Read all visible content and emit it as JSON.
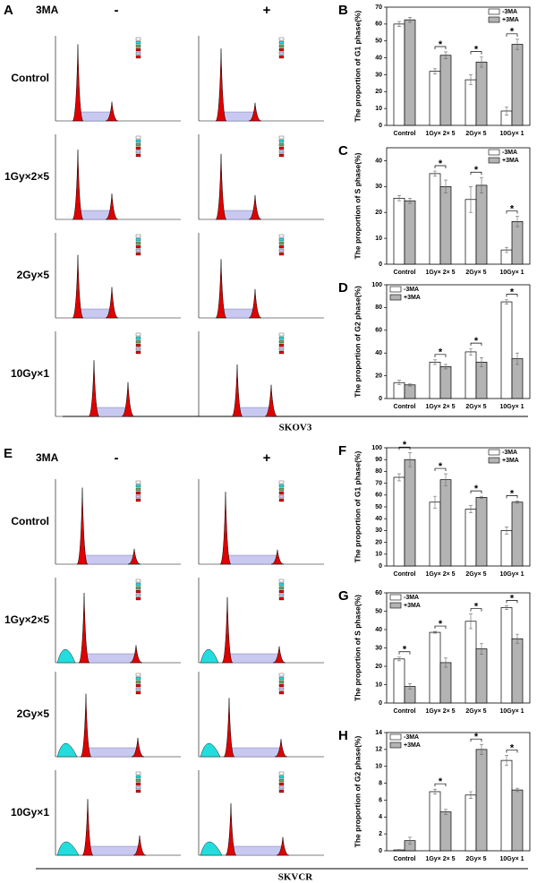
{
  "figure": {
    "panel_a": "A",
    "panel_e": "E",
    "treatment": "3MA",
    "minus": "-",
    "plus": "+",
    "rows": [
      "Control",
      "1Gy×2×5",
      "2Gy×5",
      "10Gy×1"
    ],
    "cell_top": "SKOV3",
    "cell_bottom": "SKVCR"
  },
  "chart_data": [
    {
      "type": "bar",
      "letter": "B",
      "ylabel": "The proportion of G1 phase(%)",
      "categories": [
        "Control",
        "1Gy× 2× 5",
        "2Gy× 5",
        "10Gy× 1"
      ],
      "series": [
        {
          "name": "-3MA",
          "color": "#ffffff",
          "values": [
            60,
            32,
            27,
            8.5
          ],
          "errors": [
            1.5,
            1.5,
            3,
            2.5
          ]
        },
        {
          "name": "+3MA",
          "color": "#b3b3b3",
          "values": [
            62.5,
            41.5,
            37.5,
            48
          ],
          "errors": [
            1.5,
            2,
            3,
            3
          ]
        }
      ],
      "ylim": [
        0,
        70
      ],
      "yticks": [
        0,
        10,
        20,
        30,
        40,
        50,
        60,
        70
      ],
      "legend": "upper right",
      "marker": "*",
      "significant": [
        false,
        true,
        true,
        true
      ]
    },
    {
      "type": "bar",
      "letter": "C",
      "ylabel": "The proportion of S phase(%)",
      "categories": [
        "Control",
        "1Gy× 2× 5",
        "2Gy× 5",
        "10Gy× 1"
      ],
      "series": [
        {
          "name": "-3MA",
          "color": "#ffffff",
          "values": [
            25.5,
            35,
            25,
            5.5
          ],
          "errors": [
            1,
            1,
            5,
            1
          ]
        },
        {
          "name": "+3MA",
          "color": "#b3b3b3",
          "values": [
            24.5,
            30,
            30.5,
            16.5
          ],
          "errors": [
            1,
            2.5,
            3,
            2
          ]
        }
      ],
      "ylim": [
        0,
        45
      ],
      "yticks": [
        0,
        10,
        20,
        30,
        40
      ],
      "legend": "upper right",
      "marker": "*",
      "significant": [
        false,
        true,
        true,
        true
      ]
    },
    {
      "type": "bar",
      "letter": "D",
      "ylabel": "The proportion of G2 phase(%)",
      "categories": [
        "Control",
        "1Gy× 2× 5",
        "2Gy× 5",
        "10Gy× 1"
      ],
      "series": [
        {
          "name": "-3MA",
          "color": "#ffffff",
          "values": [
            14,
            32,
            41,
            85
          ],
          "errors": [
            2,
            2,
            3,
            2
          ]
        },
        {
          "name": "+3MA",
          "color": "#b3b3b3",
          "values": [
            12,
            28,
            32,
            35
          ],
          "errors": [
            1,
            2,
            4,
            5
          ]
        }
      ],
      "ylim": [
        0,
        100
      ],
      "yticks": [
        0,
        20,
        40,
        60,
        80,
        100
      ],
      "legend": "upper left",
      "marker": "*",
      "significant": [
        false,
        true,
        true,
        true
      ]
    },
    {
      "type": "bar",
      "letter": "F",
      "ylabel": "The proportion of G1 phase(%)",
      "categories": [
        "Control",
        "1Gy× 2× 5",
        "2Gy× 5",
        "10Gy× 1"
      ],
      "series": [
        {
          "name": "-3MA",
          "color": "#ffffff",
          "values": [
            75,
            54,
            48,
            30
          ],
          "errors": [
            3,
            5,
            3,
            3
          ]
        },
        {
          "name": "+3MA",
          "color": "#b3b3b3",
          "values": [
            90,
            73,
            58,
            54
          ],
          "errors": [
            6,
            5,
            1,
            1
          ]
        }
      ],
      "ylim": [
        0,
        100
      ],
      "yticks": [
        0,
        10,
        20,
        30,
        40,
        50,
        60,
        70,
        80,
        90,
        100
      ],
      "legend": "upper right",
      "marker": "*",
      "significant": [
        true,
        true,
        true,
        true
      ]
    },
    {
      "type": "bar",
      "letter": "G",
      "ylabel": "The proportion of S phase(%)",
      "categories": [
        "Control",
        "1Gy× 2× 5",
        "2Gy× 5",
        "10Gy× 1"
      ],
      "series": [
        {
          "name": "-3MA",
          "color": "#ffffff",
          "values": [
            24,
            38.5,
            44.5,
            52
          ],
          "errors": [
            1,
            0.5,
            4,
            1
          ]
        },
        {
          "name": "+3MA",
          "color": "#b3b3b3",
          "values": [
            9,
            22,
            29.5,
            35
          ],
          "errors": [
            1.5,
            2.5,
            3,
            2.5
          ]
        }
      ],
      "ylim": [
        0,
        60
      ],
      "yticks": [
        0,
        10,
        20,
        30,
        40,
        50,
        60
      ],
      "legend": "upper left",
      "marker": "*",
      "significant": [
        true,
        true,
        true,
        true
      ]
    },
    {
      "type": "bar",
      "letter": "H",
      "ylabel": "The proportion of G2 phase(%)",
      "categories": [
        "Control",
        "1Gy× 2× 5",
        "2Gy× 5",
        "10Gy× 1"
      ],
      "series": [
        {
          "name": "-3MA",
          "color": "#ffffff",
          "values": [
            0.1,
            7,
            6.6,
            10.7
          ],
          "errors": [
            0.05,
            0.3,
            0.4,
            0.6
          ]
        },
        {
          "name": "+3MA",
          "color": "#b3b3b3",
          "values": [
            1.2,
            4.6,
            12,
            7.2
          ],
          "errors": [
            0.4,
            0.3,
            0.6,
            0.2
          ]
        }
      ],
      "ylim": [
        0,
        14
      ],
      "yticks": [
        0,
        2,
        4,
        6,
        8,
        10,
        12,
        14
      ],
      "legend": "upper left",
      "marker": "*",
      "significant": [
        false,
        true,
        true,
        true
      ]
    }
  ]
}
